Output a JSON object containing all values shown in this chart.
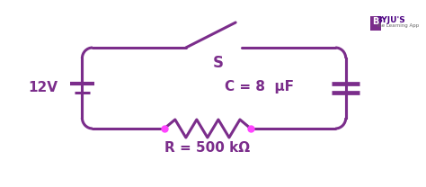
{
  "circuit_color": "#7B2D8B",
  "dot_color": "#FF44FF",
  "bg_color": "#ffffff",
  "text_color": "#7B2D8B",
  "label_12V": "12V",
  "label_S": "S",
  "label_C": "C = 8  μF",
  "label_R": "R = 500 kΩ",
  "lw": 2.2,
  "figsize": [
    4.74,
    2.08
  ],
  "dpi": 100
}
